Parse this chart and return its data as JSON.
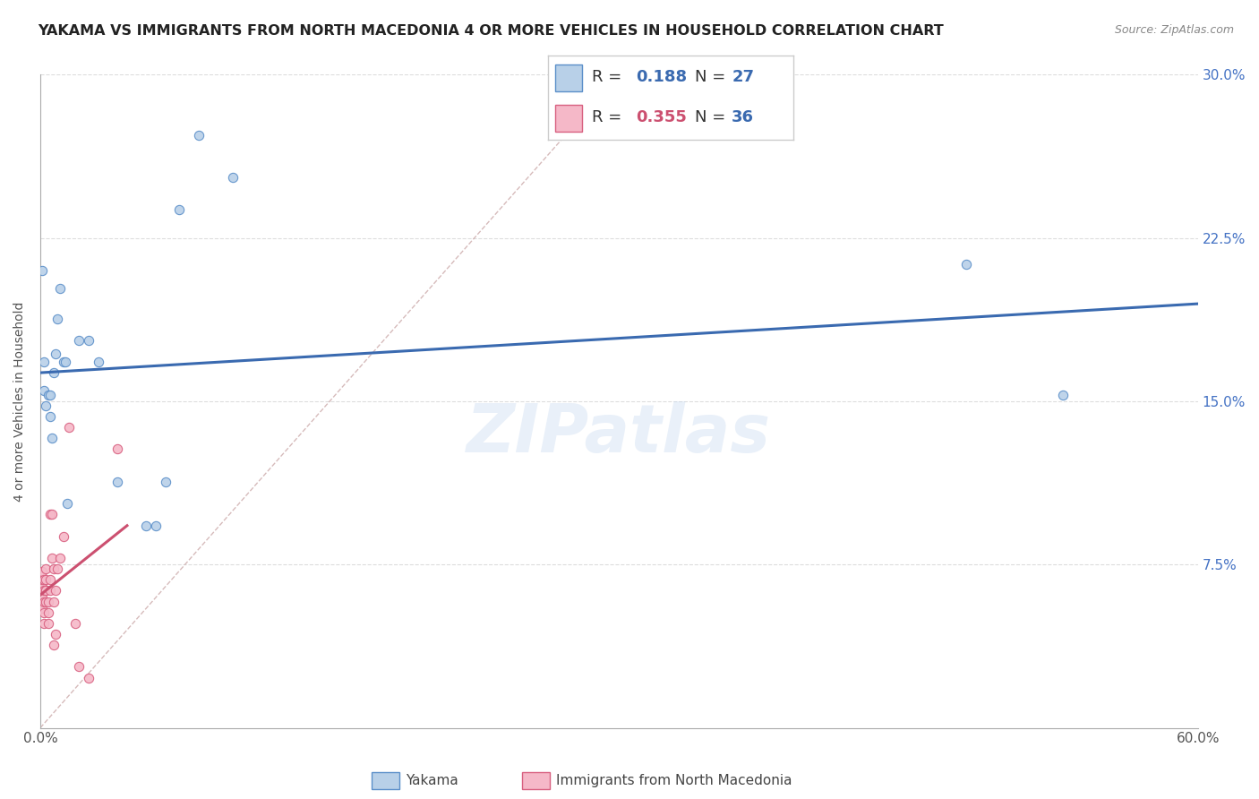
{
  "title": "YAKAMA VS IMMIGRANTS FROM NORTH MACEDONIA 4 OR MORE VEHICLES IN HOUSEHOLD CORRELATION CHART",
  "source": "Source: ZipAtlas.com",
  "ylabel": "4 or more Vehicles in Household",
  "xlim": [
    0.0,
    0.6
  ],
  "ylim": [
    0.0,
    0.3
  ],
  "xticks": [
    0.0,
    0.1,
    0.2,
    0.3,
    0.4,
    0.5,
    0.6
  ],
  "yticks": [
    0.0,
    0.075,
    0.15,
    0.225,
    0.3
  ],
  "watermark": "ZIPatlas",
  "legend_r1_val": "0.188",
  "legend_n1_val": "27",
  "legend_r2_val": "0.355",
  "legend_n2_val": "36",
  "color_yakama_fill": "#b8d0e8",
  "color_yakama_edge": "#5b8fc9",
  "color_macedonia_fill": "#f5b8c8",
  "color_macedonia_edge": "#d86080",
  "color_line_yakama": "#3a6ab0",
  "color_line_macedonia": "#cc5070",
  "color_diagonal": "#d0a0a0",
  "scatter_size": 55,
  "yakama_x": [
    0.001,
    0.002,
    0.002,
    0.003,
    0.004,
    0.005,
    0.005,
    0.006,
    0.007,
    0.008,
    0.009,
    0.01,
    0.012,
    0.013,
    0.014,
    0.02,
    0.025,
    0.03,
    0.04,
    0.055,
    0.06,
    0.065,
    0.072,
    0.082,
    0.1,
    0.48,
    0.53
  ],
  "yakama_y": [
    0.21,
    0.155,
    0.168,
    0.148,
    0.153,
    0.143,
    0.153,
    0.133,
    0.163,
    0.172,
    0.188,
    0.202,
    0.168,
    0.168,
    0.103,
    0.178,
    0.178,
    0.168,
    0.113,
    0.093,
    0.093,
    0.113,
    0.238,
    0.272,
    0.253,
    0.213,
    0.153
  ],
  "macedonia_x": [
    0.001,
    0.001,
    0.001,
    0.001,
    0.001,
    0.002,
    0.002,
    0.002,
    0.002,
    0.002,
    0.003,
    0.003,
    0.003,
    0.003,
    0.003,
    0.004,
    0.004,
    0.004,
    0.005,
    0.005,
    0.005,
    0.006,
    0.006,
    0.007,
    0.007,
    0.007,
    0.008,
    0.008,
    0.009,
    0.01,
    0.012,
    0.015,
    0.018,
    0.02,
    0.025,
    0.04
  ],
  "macedonia_y": [
    0.06,
    0.065,
    0.068,
    0.072,
    0.055,
    0.063,
    0.068,
    0.058,
    0.053,
    0.048,
    0.063,
    0.068,
    0.073,
    0.063,
    0.058,
    0.058,
    0.053,
    0.048,
    0.068,
    0.063,
    0.098,
    0.078,
    0.098,
    0.073,
    0.058,
    0.038,
    0.063,
    0.043,
    0.073,
    0.078,
    0.088,
    0.138,
    0.048,
    0.028,
    0.023,
    0.128
  ],
  "legend_label_yakama": "Yakama",
  "legend_label_macedonia": "Immigrants from North Macedonia"
}
